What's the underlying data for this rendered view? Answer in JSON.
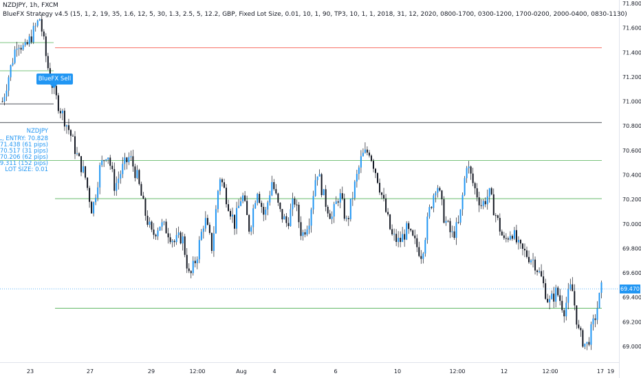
{
  "header": {
    "symbol_title": "NZDJPY, 1h, FXCM",
    "strategy_title": "BlueFX Strategy v4.5 (15, 1, 2, 19, 35, 1.6, 12, 5, 30, 1.3, 2.5, 5, 12.2, GBP, Fixed Lot Size, 0.01, 10, 1, 90, TP3, 10, 1, 1, 2018, 31, 12, 2020, 0800-1700, 0300-1200, 1700-0200, 2000-0400, 0830-1130)"
  },
  "trade_info": {
    "pair": "NZDJPY",
    "entry": "SELL, ENTRY: 70.828",
    "sl": "SL: 71.438 (61 pips)",
    "tp1": "TP1: 70.517 (31 pips)",
    "tp2": "TP2: 70.206 (62 pips)",
    "tp3": "TP3: 69.311 (152 pips)",
    "lot": "LOT SIZE: 0.01"
  },
  "signal_label": "BlueFX Sell",
  "current_price_label": "69.470",
  "colors": {
    "bull": "#2196f3",
    "bear": "#131722",
    "tp_line": "#4caf50",
    "sl_line": "#f44336",
    "entry_line": "#131722",
    "price_line": "#2196f3"
  },
  "chart_data": {
    "type": "candlestick",
    "ylim": [
      68.9,
      71.85
    ],
    "y_ticks": [
      "71.800",
      "71.600",
      "71.400",
      "71.200",
      "71.000",
      "70.800",
      "70.600",
      "70.400",
      "70.200",
      "70.000",
      "69.800",
      "69.600",
      "69.400",
      "69.200",
      "69.000"
    ],
    "x_ticks": [
      "23",
      "27",
      "29",
      "12:00",
      "Aug",
      "4",
      "6",
      "10",
      "12:00",
      "12",
      "12:00",
      "17",
      "19"
    ],
    "levels": [
      {
        "name": "SL",
        "value": 71.438,
        "color": "#f44336"
      },
      {
        "name": "ENTRY",
        "value": 70.828,
        "color": "#131722"
      },
      {
        "name": "TP1",
        "value": 70.517,
        "color": "#4caf50"
      },
      {
        "name": "TP2",
        "value": 70.206,
        "color": "#4caf50"
      },
      {
        "name": "TP3",
        "value": 69.311,
        "color": "#4caf50"
      }
    ],
    "current_price": 69.47,
    "close_path": [
      71.0,
      71.25,
      71.5,
      71.42,
      71.55,
      71.68,
      71.3,
      71.05,
      70.9,
      70.75,
      70.55,
      70.4,
      70.1,
      70.45,
      70.6,
      70.3,
      70.45,
      70.55,
      70.38,
      70.1,
      69.9,
      70.0,
      69.95,
      69.85,
      69.9,
      69.55,
      69.75,
      70.05,
      69.8,
      70.4,
      70.2,
      70.0,
      70.25,
      69.95,
      70.3,
      70.05,
      70.35,
      70.1,
      70.0,
      70.2,
      69.9,
      70.05,
      70.45,
      70.2,
      70.05,
      70.25,
      70.0,
      70.3,
      70.55,
      70.6,
      70.4,
      70.15,
      69.9,
      69.85,
      69.95,
      69.85,
      69.75,
      70.1,
      70.35,
      70.05,
      69.9,
      70.0,
      70.5,
      70.3,
      70.15,
      70.25,
      70.05,
      69.85,
      69.95,
      69.8,
      69.75,
      69.7,
      69.55,
      69.35,
      69.45,
      69.3,
      69.5,
      69.1,
      69.0,
      69.2,
      69.47
    ]
  }
}
